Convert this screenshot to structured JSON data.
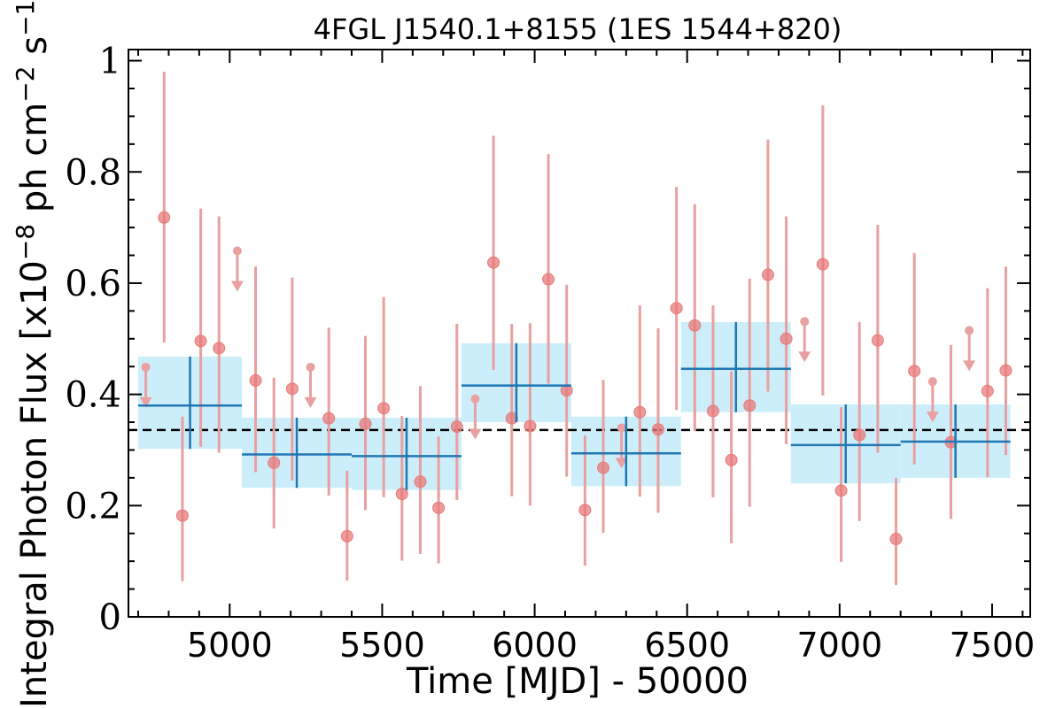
{
  "chart_data": {
    "type": "scatter",
    "title": "4FGL J1540.1+8155 (1ES 1544+820)",
    "xlabel": "Time [MJD] - 50000",
    "ylabel": "Integral Photon Flux [x10^{-8} ph cm^{-2} s^{-1}]",
    "ylabel_parts": {
      "prefix": "Integral Photon Flux [x10",
      "exp1": "−8",
      "mid1": " ph cm",
      "exp2": "−2",
      "mid2": " s",
      "exp3": "−1",
      "suffix": "]"
    },
    "xlim": [
      4668,
      7625
    ],
    "ylim": [
      0,
      1.02
    ],
    "x_ticks": [
      5000,
      5500,
      6000,
      6500,
      7000,
      7500
    ],
    "x_tick_labels": [
      "5000",
      "5500",
      "6000",
      "6500",
      "7000",
      "7500"
    ],
    "y_ticks": [
      0,
      0.2,
      0.4,
      0.6,
      0.8,
      1.0
    ],
    "y_tick_labels": [
      "0",
      "0.2",
      "0.4",
      "0.6",
      "0.8",
      "1"
    ],
    "average_flux": 0.336,
    "colors": {
      "points": "#e87a7a",
      "errorbars": "#e8a0a0",
      "bins_fill": "#cceefa",
      "bins_line": "#1f77b4",
      "average_line": "#000000"
    },
    "series": [
      {
        "kind": "short-bin-points",
        "points": [
          {
            "x": 4785,
            "y": 0.718,
            "yerr_low": 0.225,
            "yerr_high": 0.262
          },
          {
            "x": 4845,
            "y": 0.182,
            "yerr_low": 0.118,
            "yerr_high": 0.178
          },
          {
            "x": 4905,
            "y": 0.496,
            "yerr_low": 0.19,
            "yerr_high": 0.238
          },
          {
            "x": 4965,
            "y": 0.483,
            "yerr_low": 0.188,
            "yerr_high": 0.237
          },
          {
            "x": 5085,
            "y": 0.425,
            "yerr_low": 0.165,
            "yerr_high": 0.205
          },
          {
            "x": 5145,
            "y": 0.277,
            "yerr_low": 0.118,
            "yerr_high": 0.153
          },
          {
            "x": 5205,
            "y": 0.41,
            "yerr_low": 0.165,
            "yerr_high": 0.2
          },
          {
            "x": 5325,
            "y": 0.357,
            "yerr_low": 0.139,
            "yerr_high": 0.163
          },
          {
            "x": 5385,
            "y": 0.145,
            "yerr_low": 0.08,
            "yerr_high": 0.118
          },
          {
            "x": 5445,
            "y": 0.347,
            "yerr_low": 0.155,
            "yerr_high": 0.158
          },
          {
            "x": 5505,
            "y": 0.375,
            "yerr_low": 0.16,
            "yerr_high": 0.2
          },
          {
            "x": 5565,
            "y": 0.221,
            "yerr_low": 0.12,
            "yerr_high": 0.14
          },
          {
            "x": 5625,
            "y": 0.243,
            "yerr_low": 0.13,
            "yerr_high": 0.172
          },
          {
            "x": 5685,
            "y": 0.196,
            "yerr_low": 0.1,
            "yerr_high": 0.128
          },
          {
            "x": 5745,
            "y": 0.342,
            "yerr_low": 0.132,
            "yerr_high": 0.185
          },
          {
            "x": 5865,
            "y": 0.637,
            "yerr_low": 0.193,
            "yerr_high": 0.228
          },
          {
            "x": 5925,
            "y": 0.357,
            "yerr_low": 0.14,
            "yerr_high": 0.17
          },
          {
            "x": 5985,
            "y": 0.343,
            "yerr_low": 0.143,
            "yerr_high": 0.185
          },
          {
            "x": 6045,
            "y": 0.607,
            "yerr_low": 0.188,
            "yerr_high": 0.225
          },
          {
            "x": 6105,
            "y": 0.407,
            "yerr_low": 0.155,
            "yerr_high": 0.19
          },
          {
            "x": 6165,
            "y": 0.192,
            "yerr_low": 0.1,
            "yerr_high": 0.134
          },
          {
            "x": 6225,
            "y": 0.268,
            "yerr_low": 0.117,
            "yerr_high": 0.158
          },
          {
            "x": 6345,
            "y": 0.368,
            "yerr_low": 0.152,
            "yerr_high": 0.192
          },
          {
            "x": 6405,
            "y": 0.337,
            "yerr_low": 0.15,
            "yerr_high": 0.182
          },
          {
            "x": 6465,
            "y": 0.555,
            "yerr_low": 0.183,
            "yerr_high": 0.218
          },
          {
            "x": 6525,
            "y": 0.524,
            "yerr_low": 0.19,
            "yerr_high": 0.218
          },
          {
            "x": 6585,
            "y": 0.37,
            "yerr_low": 0.155,
            "yerr_high": 0.19
          },
          {
            "x": 6645,
            "y": 0.282,
            "yerr_low": 0.15,
            "yerr_high": 0.16
          },
          {
            "x": 6705,
            "y": 0.38,
            "yerr_low": 0.182,
            "yerr_high": 0.228
          },
          {
            "x": 6765,
            "y": 0.615,
            "yerr_low": 0.21,
            "yerr_high": 0.243
          },
          {
            "x": 6825,
            "y": 0.5,
            "yerr_low": 0.19,
            "yerr_high": 0.22
          },
          {
            "x": 6945,
            "y": 0.634,
            "yerr_low": 0.236,
            "yerr_high": 0.286
          },
          {
            "x": 7005,
            "y": 0.227,
            "yerr_low": 0.128,
            "yerr_high": 0.15
          },
          {
            "x": 7065,
            "y": 0.327,
            "yerr_low": 0.155,
            "yerr_high": 0.203
          },
          {
            "x": 7125,
            "y": 0.497,
            "yerr_low": 0.202,
            "yerr_high": 0.208
          },
          {
            "x": 7185,
            "y": 0.14,
            "yerr_low": 0.083,
            "yerr_high": 0.11
          },
          {
            "x": 7245,
            "y": 0.442,
            "yerr_low": 0.168,
            "yerr_high": 0.212
          },
          {
            "x": 7365,
            "y": 0.314,
            "yerr_low": 0.138,
            "yerr_high": 0.175
          },
          {
            "x": 7485,
            "y": 0.406,
            "yerr_low": 0.155,
            "yerr_high": 0.185
          },
          {
            "x": 7545,
            "y": 0.443,
            "yerr_low": 0.152,
            "yerr_high": 0.187
          }
        ]
      },
      {
        "kind": "upper-limits",
        "points": [
          {
            "x": 4725,
            "y": 0.449
          },
          {
            "x": 5025,
            "y": 0.658
          },
          {
            "x": 5265,
            "y": 0.449
          },
          {
            "x": 5805,
            "y": 0.392
          },
          {
            "x": 6285,
            "y": 0.34
          },
          {
            "x": 6885,
            "y": 0.531
          },
          {
            "x": 7305,
            "y": 0.423
          },
          {
            "x": 7425,
            "y": 0.515
          }
        ]
      },
      {
        "kind": "long-bins",
        "bins": [
          {
            "x0": 4700,
            "x1": 5040,
            "y": 0.38,
            "ylow": 0.302,
            "yhigh": 0.468
          },
          {
            "x0": 5040,
            "x1": 5400,
            "y": 0.292,
            "ylow": 0.232,
            "yhigh": 0.358
          },
          {
            "x0": 5400,
            "x1": 5760,
            "y": 0.289,
            "ylow": 0.228,
            "yhigh": 0.358
          },
          {
            "x0": 5760,
            "x1": 6120,
            "y": 0.416,
            "ylow": 0.35,
            "yhigh": 0.492
          },
          {
            "x0": 6120,
            "x1": 6480,
            "y": 0.294,
            "ylow": 0.235,
            "yhigh": 0.36
          },
          {
            "x0": 6480,
            "x1": 6840,
            "y": 0.446,
            "ylow": 0.368,
            "yhigh": 0.53
          },
          {
            "x0": 6840,
            "x1": 7200,
            "y": 0.309,
            "ylow": 0.24,
            "yhigh": 0.382
          },
          {
            "x0": 7200,
            "x1": 7560,
            "y": 0.315,
            "ylow": 0.25,
            "yhigh": 0.382
          }
        ]
      }
    ]
  }
}
